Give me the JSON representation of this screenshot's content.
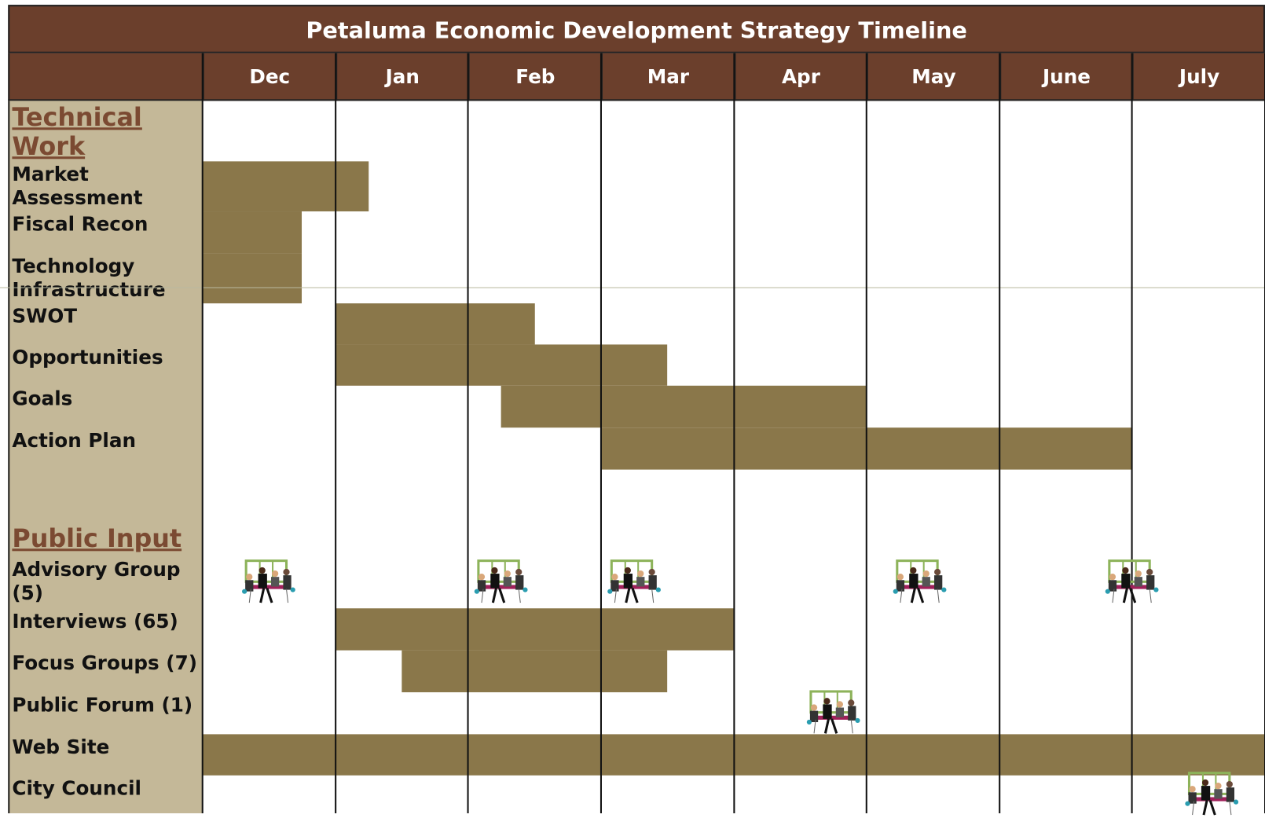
{
  "title": "Petaluma Economic Development Strategy Timeline",
  "months": [
    "Dec",
    "Jan",
    "Feb",
    "Mar",
    "Apr",
    "May",
    "June",
    "July"
  ],
  "sections": [
    {
      "heading": "Technical Work",
      "rows": [
        {
          "label": "Market Assessment",
          "bars": [
            [
              0,
              1.25
            ]
          ]
        },
        {
          "label": "Fiscal Recon",
          "bars": [
            [
              0,
              0.75
            ]
          ]
        },
        {
          "label": "Technology Infrastructure",
          "bars": [
            [
              0,
              0.75
            ]
          ]
        },
        {
          "label": "SWOT",
          "bars": [
            [
              1,
              2.5
            ]
          ]
        },
        {
          "label": "Opportunities",
          "bars": [
            [
              1,
              3.5
            ]
          ]
        },
        {
          "label": "Goals",
          "bars": [
            [
              2.25,
              5
            ]
          ]
        },
        {
          "label": "Action Plan",
          "bars": [
            [
              3,
              7
            ]
          ]
        }
      ]
    },
    {
      "heading": "Public Input",
      "rows": [
        {
          "label": "Advisory Group (5)",
          "meetings": [
            0.5,
            2.25,
            3.25,
            5.4,
            7
          ]
        },
        {
          "label": "Interviews (65)",
          "bars": [
            [
              1,
              4
            ]
          ]
        },
        {
          "label": "Focus Groups (7)",
          "bars": [
            [
              1.5,
              3.5
            ]
          ]
        },
        {
          "label": "Public Forum (1)",
          "meetings": [
            4.75
          ]
        },
        {
          "label": "Web Site",
          "bars": [
            [
              0,
              8
            ]
          ]
        },
        {
          "label": "City Council",
          "meetings": [
            7.6
          ]
        }
      ]
    }
  ]
}
